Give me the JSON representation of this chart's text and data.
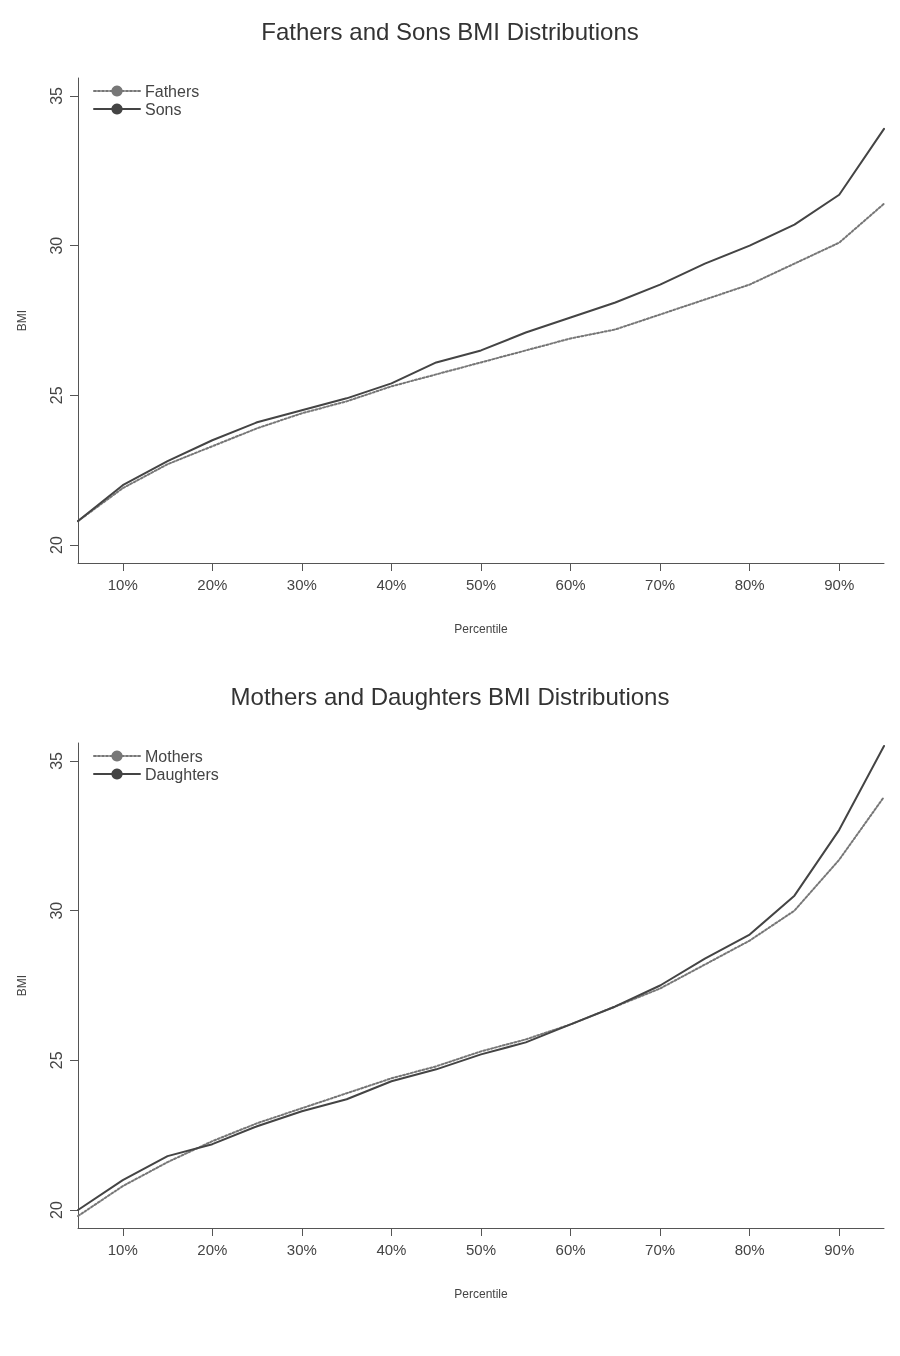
{
  "chart_data": [
    {
      "type": "line",
      "title": "Fathers and Sons BMI Distributions",
      "xlabel": "Percentile",
      "ylabel": "BMI",
      "x": [
        5,
        10,
        15,
        20,
        25,
        30,
        35,
        40,
        45,
        50,
        55,
        60,
        65,
        70,
        75,
        80,
        85,
        90,
        95
      ],
      "series": [
        {
          "name": "Fathers",
          "color": "#777777",
          "line_style": "dotted",
          "values": [
            20.8,
            21.9,
            22.7,
            23.3,
            23.9,
            24.4,
            24.8,
            25.3,
            25.7,
            26.1,
            26.5,
            26.9,
            27.2,
            27.7,
            28.2,
            28.7,
            29.4,
            30.1,
            31.4
          ]
        },
        {
          "name": "Sons",
          "color": "#444444",
          "line_style": "solid",
          "values": [
            20.8,
            22.0,
            22.8,
            23.5,
            24.1,
            24.5,
            24.9,
            25.4,
            26.1,
            26.5,
            27.1,
            27.6,
            28.1,
            28.7,
            29.4,
            30.0,
            30.7,
            31.7,
            33.9
          ]
        }
      ],
      "xlim": [
        5,
        95
      ],
      "xticks": [
        {
          "value": 10,
          "label": "10%"
        },
        {
          "value": 20,
          "label": "20%"
        },
        {
          "value": 30,
          "label": "30%"
        },
        {
          "value": 40,
          "label": "40%"
        },
        {
          "value": 50,
          "label": "50%"
        },
        {
          "value": 60,
          "label": "60%"
        },
        {
          "value": 70,
          "label": "70%"
        },
        {
          "value": 80,
          "label": "80%"
        },
        {
          "value": 90,
          "label": "90%"
        }
      ],
      "ylim": [
        19.4,
        35.6
      ],
      "yticks": [
        20,
        25,
        30,
        35
      ],
      "grid": false,
      "legend": "top left",
      "marker": "none"
    },
    {
      "type": "line",
      "title": "Mothers and Daughters BMI Distributions",
      "xlabel": "Percentile",
      "ylabel": "BMI",
      "x": [
        5,
        10,
        15,
        20,
        25,
        30,
        35,
        40,
        45,
        50,
        55,
        60,
        65,
        70,
        75,
        80,
        85,
        90,
        95
      ],
      "series": [
        {
          "name": "Mothers",
          "color": "#777777",
          "line_style": "dotted",
          "values": [
            19.8,
            20.8,
            21.6,
            22.3,
            22.9,
            23.4,
            23.9,
            24.4,
            24.8,
            25.3,
            25.7,
            26.2,
            26.8,
            27.4,
            28.2,
            29.0,
            30.0,
            31.7,
            33.8
          ]
        },
        {
          "name": "Daughters",
          "color": "#444444",
          "line_style": "solid",
          "values": [
            20.0,
            21.0,
            21.8,
            22.2,
            22.8,
            23.3,
            23.7,
            24.3,
            24.7,
            25.2,
            25.6,
            26.2,
            26.8,
            27.5,
            28.4,
            29.2,
            30.5,
            32.7,
            35.5
          ]
        }
      ],
      "xlim": [
        5,
        95
      ],
      "xticks": [
        {
          "value": 10,
          "label": "10%"
        },
        {
          "value": 20,
          "label": "20%"
        },
        {
          "value": 30,
          "label": "30%"
        },
        {
          "value": 40,
          "label": "40%"
        },
        {
          "value": 50,
          "label": "50%"
        },
        {
          "value": 60,
          "label": "60%"
        },
        {
          "value": 70,
          "label": "70%"
        },
        {
          "value": 80,
          "label": "80%"
        },
        {
          "value": 90,
          "label": "90%"
        }
      ],
      "ylim": [
        19.4,
        35.6
      ],
      "yticks": [
        20,
        25,
        30,
        35
      ],
      "grid": false,
      "legend": "top left",
      "marker": "none"
    }
  ]
}
